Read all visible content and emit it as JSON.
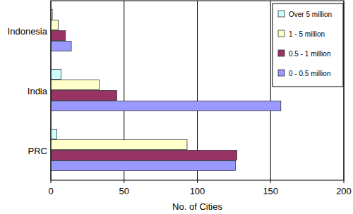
{
  "chart_data": {
    "type": "bar",
    "orientation": "horizontal",
    "x_label": "No. of Cities",
    "categories": [
      "Indonesia",
      "India",
      "PRC"
    ],
    "series": [
      {
        "name": "Over 5 million",
        "color": "#ccffff",
        "values": [
          1,
          7,
          4
        ]
      },
      {
        "name": "1 - 5 million",
        "color": "#ffffcc",
        "values": [
          5,
          33,
          93
        ]
      },
      {
        "name": "0.5 - 1 million",
        "color": "#993366",
        "values": [
          10,
          45,
          127
        ]
      },
      {
        "name": "0 - 0.5 million",
        "color": "#9999ff",
        "values": [
          14,
          157,
          126
        ]
      }
    ],
    "xlim": [
      0,
      200
    ],
    "xticks": [
      0,
      50,
      100,
      150,
      200
    ],
    "grid": true,
    "legend": "upper right"
  }
}
